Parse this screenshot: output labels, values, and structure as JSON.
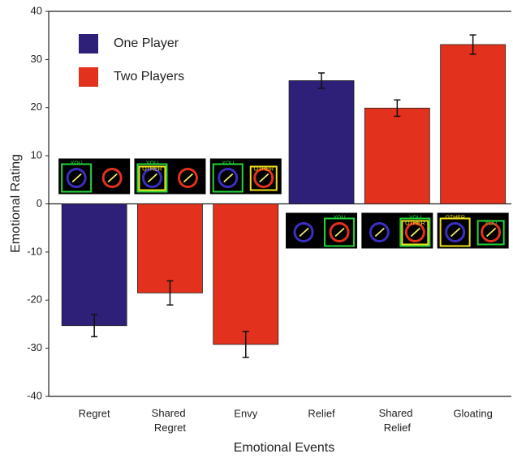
{
  "chart_data": {
    "type": "bar",
    "xlabel": "Emotional Events",
    "ylabel": "Emotional Rating",
    "categories": [
      "Regret",
      "Shared Regret",
      "Envy",
      "Relief",
      "Shared Relief",
      "Gloating"
    ],
    "series": [
      {
        "name": "One Player",
        "color": "#2e1f78",
        "values": [
          -25.3,
          null,
          null,
          25.6,
          null,
          null
        ],
        "errors": [
          2.3,
          null,
          null,
          1.6,
          null,
          null
        ]
      },
      {
        "name": "Two Players",
        "color": "#e2311d",
        "values": [
          null,
          -18.5,
          -29.2,
          null,
          19.9,
          33.1
        ],
        "errors": [
          null,
          2.5,
          2.7,
          null,
          1.7,
          2.0
        ]
      }
    ],
    "ylim": [
      -40,
      40
    ],
    "yticks": [
      -40,
      -30,
      -20,
      -10,
      0,
      10,
      20,
      30,
      40
    ],
    "legend": "upper left",
    "icons": [
      {
        "boxes": [
          {
            "side": 0,
            "label": "YOU",
            "color": "#22d63a"
          }
        ]
      },
      {
        "boxes": [
          {
            "side": 0,
            "label": "YOU",
            "color": "#22d63a"
          },
          {
            "side": 0,
            "label": "OTHER",
            "color": "#f2e21c"
          }
        ]
      },
      {
        "boxes": [
          {
            "side": 0,
            "label": "YOU",
            "color": "#22d63a"
          },
          {
            "side": 1,
            "label": "OTHER",
            "color": "#f2e21c"
          }
        ]
      },
      {
        "boxes": [
          {
            "side": 1,
            "label": "YOU",
            "color": "#22d63a"
          }
        ]
      },
      {
        "boxes": [
          {
            "side": 1,
            "label": "YOU",
            "color": "#22d63a"
          },
          {
            "side": 1,
            "label": "OTHER",
            "color": "#f2e21c"
          }
        ]
      },
      {
        "boxes": [
          {
            "side": 0,
            "label": "OTHER",
            "color": "#f2e21c"
          },
          {
            "side": 1,
            "label": "YOU",
            "color": "#22d63a"
          }
        ]
      }
    ]
  }
}
